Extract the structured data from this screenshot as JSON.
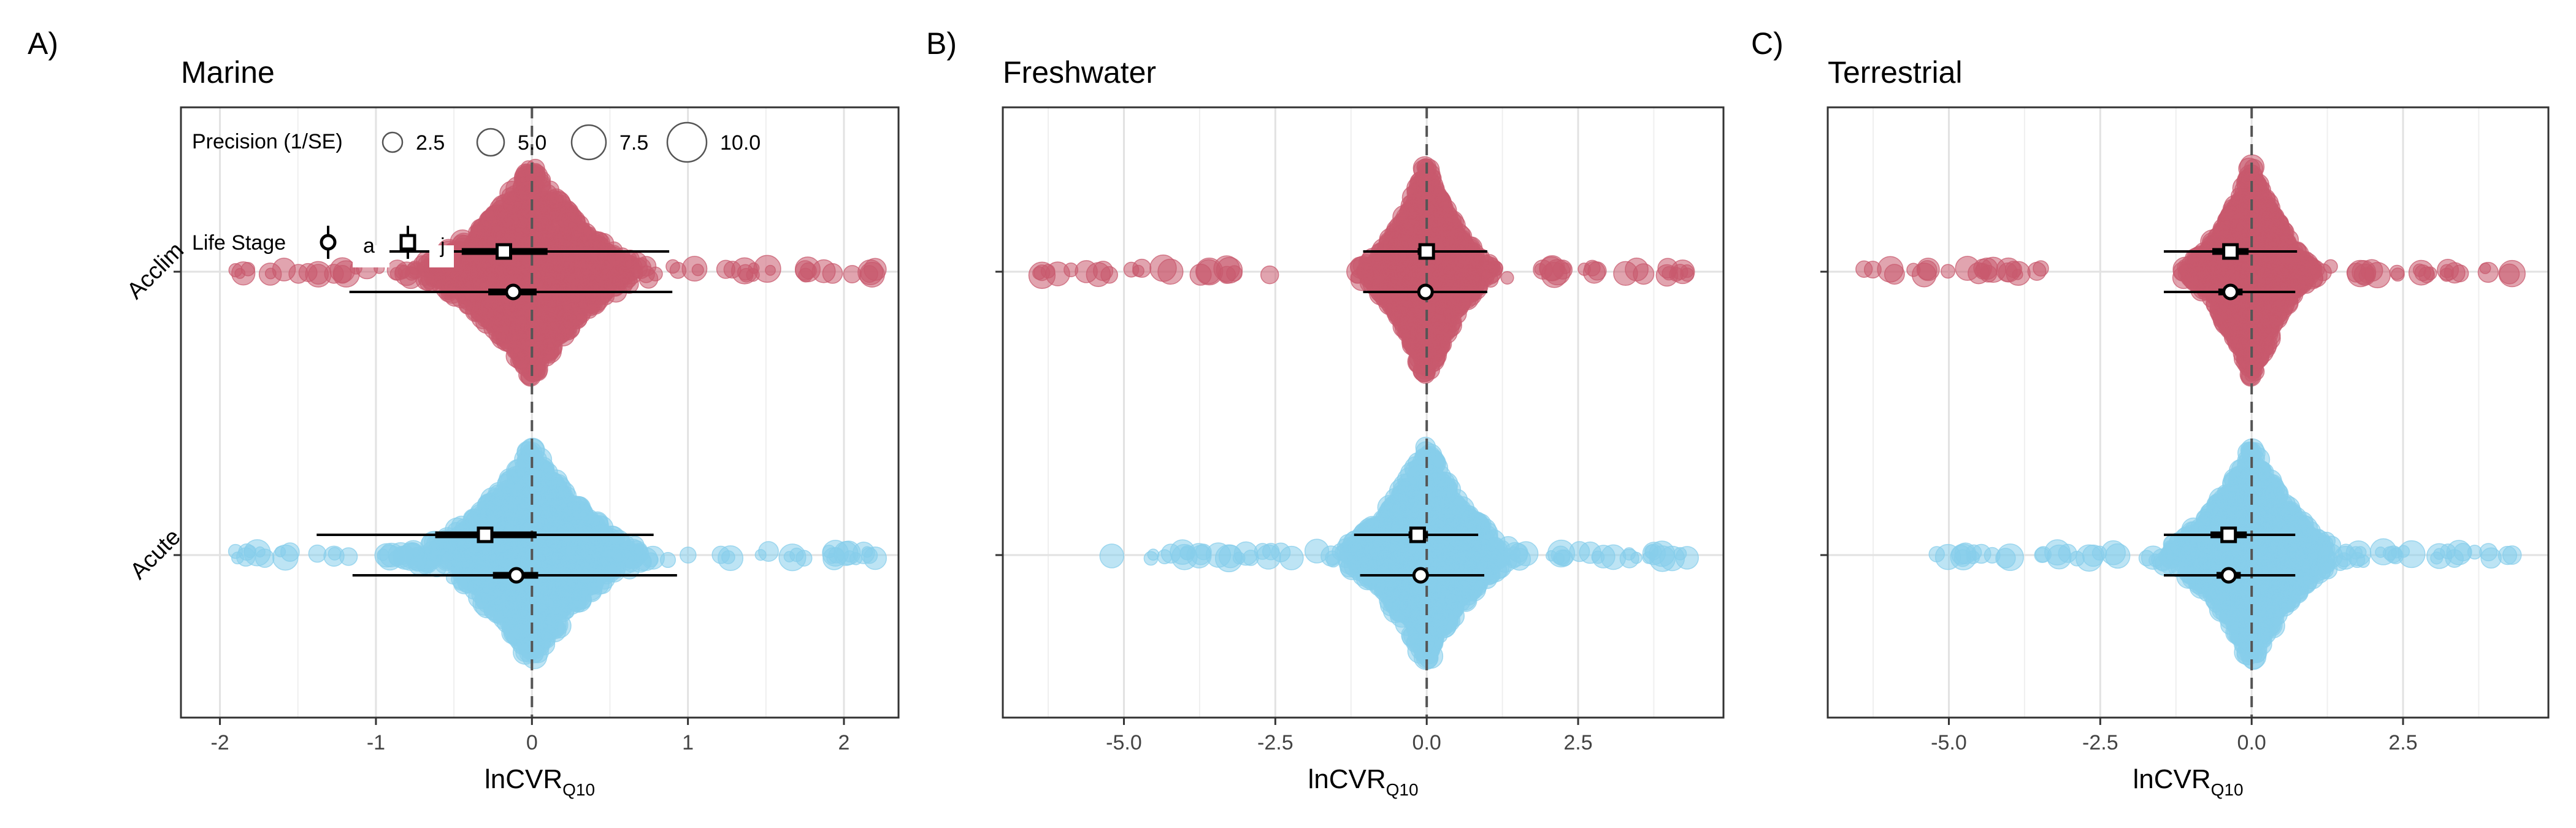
{
  "figure": {
    "x_axis_label_main": "lnCVR",
    "x_axis_label_sub": "Q10",
    "y_categories": [
      "Acclim",
      "Acute"
    ],
    "legend_precision": {
      "title": "Precision (1/SE)",
      "items": [
        "2.5",
        "5.0",
        "7.5",
        "10.0"
      ],
      "values": [
        2.5,
        5.0,
        7.5,
        10.0
      ]
    },
    "legend_life_stage": {
      "title": "Life Stage",
      "items": [
        "a",
        "j"
      ],
      "shapes": [
        "circle",
        "square"
      ]
    },
    "colors": {
      "acclim": "#C85A6E",
      "acute": "#87CEEB",
      "reference_line": "#555555"
    }
  },
  "chart_data": [
    {
      "type": "scatter",
      "panel_label": "A)",
      "title": "Marine",
      "xlim": [
        -2.25,
        2.35
      ],
      "x_ticks": [
        -2,
        -1,
        0,
        1,
        2
      ],
      "x_tick_labels": [
        "-2",
        "-1",
        "0",
        "1",
        "2"
      ],
      "categories": [
        "Acclim",
        "Acute"
      ],
      "distribution": {
        "Acclim": {
          "min": -1.9,
          "max": 2.2,
          "core_halfwidth": 0.9
        },
        "Acute": {
          "min": -1.9,
          "max": 2.2,
          "core_halfwidth": 0.9
        }
      },
      "estimates": [
        {
          "category": "Acclim",
          "life_stage": "j",
          "shape": "square",
          "estimate": -0.18,
          "ci": [
            -0.45,
            0.1
          ],
          "pi": [
            -1.1,
            0.88
          ]
        },
        {
          "category": "Acclim",
          "life_stage": "a",
          "shape": "circle",
          "estimate": -0.12,
          "ci": [
            -0.28,
            0.03
          ],
          "pi": [
            -1.17,
            0.9
          ]
        },
        {
          "category": "Acute",
          "life_stage": "j",
          "shape": "square",
          "estimate": -0.3,
          "ci": [
            -0.62,
            0.03
          ],
          "pi": [
            -1.38,
            0.78
          ]
        },
        {
          "category": "Acute",
          "life_stage": "a",
          "shape": "circle",
          "estimate": -0.1,
          "ci": [
            -0.25,
            0.04
          ],
          "pi": [
            -1.15,
            0.93
          ]
        }
      ]
    },
    {
      "type": "scatter",
      "panel_label": "B)",
      "title": "Freshwater",
      "xlim": [
        -7.0,
        4.9
      ],
      "x_ticks": [
        -5,
        -2.5,
        0,
        2.5
      ],
      "x_tick_labels": [
        "-5.0",
        "-2.5",
        "0.0",
        "2.5"
      ],
      "categories": [
        "Acclim",
        "Acute"
      ],
      "distribution": {
        "Acclim": {
          "min": -6.4,
          "max": 4.3,
          "core_halfwidth": 1.3
        },
        "Acute": {
          "min": -5.2,
          "max": 4.3,
          "core_halfwidth": 1.8
        }
      },
      "estimates": [
        {
          "category": "Acclim",
          "life_stage": "j",
          "shape": "square",
          "estimate": 0.0,
          "ci": [
            -0.15,
            0.12
          ],
          "pi": [
            -1.05,
            1.0
          ]
        },
        {
          "category": "Acclim",
          "life_stage": "a",
          "shape": "circle",
          "estimate": -0.02,
          "ci": [
            -0.12,
            0.1
          ],
          "pi": [
            -1.05,
            1.0
          ]
        },
        {
          "category": "Acute",
          "life_stage": "j",
          "shape": "square",
          "estimate": -0.15,
          "ci": [
            -0.3,
            0.02
          ],
          "pi": [
            -1.2,
            0.85
          ]
        },
        {
          "category": "Acute",
          "life_stage": "a",
          "shape": "circle",
          "estimate": -0.1,
          "ci": [
            -0.2,
            0.0
          ],
          "pi": [
            -1.1,
            0.95
          ]
        }
      ]
    },
    {
      "type": "scatter",
      "panel_label": "C)",
      "title": "Terrestrial",
      "xlim": [
        -7.0,
        4.9
      ],
      "x_ticks": [
        -5,
        -2.5,
        0,
        2.5
      ],
      "x_tick_labels": [
        "-5.0",
        "-2.5",
        "0.0",
        "2.5"
      ],
      "categories": [
        "Acclim",
        "Acute"
      ],
      "distribution": {
        "Acclim": {
          "min": -6.4,
          "max": 4.3,
          "core_halfwidth": 1.3
        },
        "Acute": {
          "min": -5.2,
          "max": 4.3,
          "core_halfwidth": 1.8
        }
      },
      "estimates": [
        {
          "category": "Acclim",
          "life_stage": "j",
          "shape": "square",
          "estimate": -0.35,
          "ci": [
            -0.65,
            -0.05
          ],
          "pi": [
            -1.45,
            0.75
          ]
        },
        {
          "category": "Acclim",
          "life_stage": "a",
          "shape": "circle",
          "estimate": -0.35,
          "ci": [
            -0.55,
            -0.15
          ],
          "pi": [
            -1.45,
            0.72
          ]
        },
        {
          "category": "Acute",
          "life_stage": "j",
          "shape": "square",
          "estimate": -0.38,
          "ci": [
            -0.68,
            -0.08
          ],
          "pi": [
            -1.45,
            0.72
          ]
        },
        {
          "category": "Acute",
          "life_stage": "a",
          "shape": "circle",
          "estimate": -0.38,
          "ci": [
            -0.58,
            -0.18
          ],
          "pi": [
            -1.45,
            0.72
          ]
        }
      ]
    }
  ]
}
